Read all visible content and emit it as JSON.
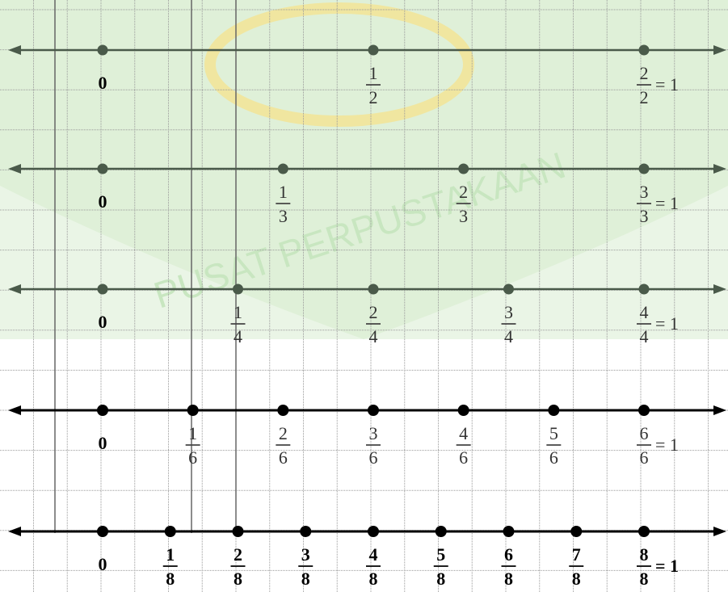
{
  "rows": [
    {
      "dot_values": [
        "0",
        "1/2",
        "2/2"
      ],
      "labels": [
        {
          "num": "0",
          "den": "",
          "suffix": ""
        },
        {
          "num": "1",
          "den": "2",
          "suffix": ""
        },
        {
          "num": "2",
          "den": "2",
          "suffix": "= 1"
        }
      ]
    },
    {
      "dot_values": [
        "0",
        "1/3",
        "2/3",
        "3/3"
      ],
      "labels": [
        {
          "num": "0",
          "den": "",
          "suffix": ""
        },
        {
          "num": "1",
          "den": "3",
          "suffix": ""
        },
        {
          "num": "2",
          "den": "3",
          "suffix": ""
        },
        {
          "num": "3",
          "den": "3",
          "suffix": "= 1"
        }
      ]
    },
    {
      "dot_values": [
        "0",
        "1/4",
        "2/4",
        "3/4",
        "4/4"
      ],
      "labels": [
        {
          "num": "0",
          "den": "",
          "suffix": ""
        },
        {
          "num": "1",
          "den": "4",
          "suffix": ""
        },
        {
          "num": "2",
          "den": "4",
          "suffix": ""
        },
        {
          "num": "3",
          "den": "4",
          "suffix": ""
        },
        {
          "num": "4",
          "den": "4",
          "suffix": "= 1"
        }
      ]
    },
    {
      "dot_values": [
        "0",
        "1/6",
        "2/6",
        "3/6",
        "4/6",
        "5/6",
        "6/6"
      ],
      "labels": [
        {
          "num": "0",
          "den": "",
          "suffix": ""
        },
        {
          "num": "1",
          "den": "6",
          "suffix": ""
        },
        {
          "num": "2",
          "den": "6",
          "suffix": ""
        },
        {
          "num": "3",
          "den": "6",
          "suffix": ""
        },
        {
          "num": "4",
          "den": "6",
          "suffix": ""
        },
        {
          "num": "5",
          "den": "6",
          "suffix": ""
        },
        {
          "num": "6",
          "den": "6",
          "suffix": "= 1"
        }
      ]
    },
    {
      "dot_values": [
        "0",
        "1/8",
        "2/8",
        "3/8",
        "4/8",
        "5/8",
        "6/8",
        "7/8",
        "8/8"
      ],
      "labels": [
        {
          "num": "0",
          "den": "",
          "suffix": ""
        },
        {
          "num": "1",
          "den": "8",
          "suffix": ""
        },
        {
          "num": "2",
          "den": "8",
          "suffix": ""
        },
        {
          "num": "3",
          "den": "8",
          "suffix": ""
        },
        {
          "num": "4",
          "den": "8",
          "suffix": ""
        },
        {
          "num": "5",
          "den": "8",
          "suffix": ""
        },
        {
          "num": "6",
          "den": "8",
          "suffix": ""
        },
        {
          "num": "7",
          "den": "8",
          "suffix": ""
        },
        {
          "num": "8",
          "den": "8",
          "suffix": "= 1"
        }
      ]
    }
  ],
  "watermark": {
    "text": "PUSAT PERPUSTAKAAN"
  },
  "colors": {
    "grid": "#9a9a9a",
    "light_row": "#4a5a4a",
    "dark_row": "#000000",
    "watermark": "#c8e6c0"
  }
}
